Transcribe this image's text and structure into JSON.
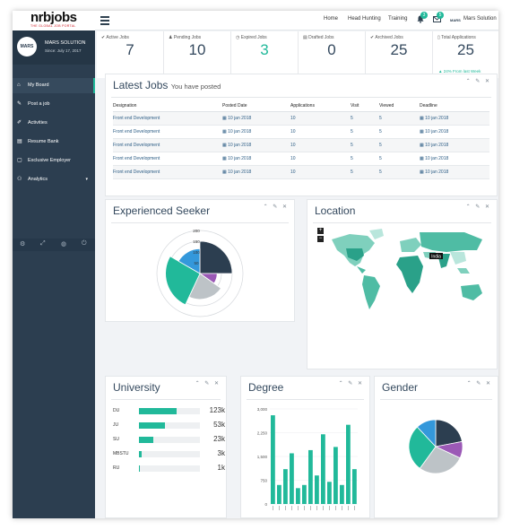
{
  "brand": {
    "logo_text": "nrbjobs",
    "tagline": "THE GLOBAL JOB PORTAL"
  },
  "topnav": {
    "items": [
      "Home",
      "Head Hunting",
      "Training"
    ],
    "bell_count": "3",
    "msg_count": "5",
    "account_badge": "MARS",
    "account_name": "Mars Solution"
  },
  "profile": {
    "avatar": "MARS",
    "name": "MARS SOLUTION",
    "since": "Since: July 17, 2017"
  },
  "sidebar": {
    "items": [
      {
        "icon": "home-icon",
        "label": "My Board"
      },
      {
        "icon": "post-icon",
        "label": "Post a job"
      },
      {
        "icon": "activities-icon",
        "label": "Activities"
      },
      {
        "icon": "resume-icon",
        "label": "Resume Bank"
      },
      {
        "icon": "employer-icon",
        "label": "Exclusive Employer"
      },
      {
        "icon": "analytics-icon",
        "label": "Analytics"
      }
    ]
  },
  "stats": [
    {
      "label": "Active Jobs",
      "value": "7",
      "color": "#34495e"
    },
    {
      "label": "Pending Jobs",
      "value": "10",
      "color": "#34495e"
    },
    {
      "label": "Expired Jobs",
      "value": "3",
      "color": "#21b99a"
    },
    {
      "label": "Drafted Jobs",
      "value": "0",
      "color": "#34495e"
    },
    {
      "label": "Archived Jobs",
      "value": "25",
      "color": "#34495e"
    },
    {
      "label": "Total Applications",
      "value": "25",
      "color": "#34495e",
      "note": "24% From last Week"
    }
  ],
  "latest_jobs": {
    "title": "Latest Jobs",
    "subtitle": "You have posted",
    "columns": [
      "Designation",
      "Posted Date",
      "Applications",
      "Visit",
      "Viewed",
      "Deadline"
    ],
    "rows": [
      [
        "Front end Development",
        "10 jan 2018",
        "10",
        "5",
        "5",
        "10 jan 2018"
      ],
      [
        "Front end Development",
        "10 jan 2018",
        "10",
        "5",
        "5",
        "10 jan 2018"
      ],
      [
        "Front end Development",
        "10 jan 2018",
        "10",
        "5",
        "5",
        "10 jan 2018"
      ],
      [
        "Front end Development",
        "10 jan 2018",
        "10",
        "5",
        "5",
        "10 jan 2018"
      ],
      [
        "Front end Development",
        "10 jan 2018",
        "10",
        "5",
        "5",
        "10 jan 2018"
      ]
    ]
  },
  "experienced_seeker": {
    "title": "Experienced Seeker",
    "ticks": [
      "200",
      "150",
      "100",
      "50"
    ]
  },
  "location": {
    "title": "Location",
    "zoom_in": "+",
    "zoom_out": "−",
    "tooltip": "India"
  },
  "university": {
    "title": "University",
    "rows": [
      {
        "name": "DU",
        "value": "123k",
        "fraction": 0.62
      },
      {
        "name": "JU",
        "value": "53k",
        "fraction": 0.42
      },
      {
        "name": "SU",
        "value": "23k",
        "fraction": 0.24
      },
      {
        "name": "MBSTU",
        "value": "3k",
        "fraction": 0.04
      },
      {
        "name": "RU",
        "value": "1k",
        "fraction": 0.02
      }
    ]
  },
  "degree": {
    "title": "Degree"
  },
  "gender": {
    "title": "Gender"
  },
  "colors": {
    "accent": "#21b99a",
    "sidebar": "#2c3e50",
    "title": "#34495e"
  },
  "chart_data": [
    {
      "type": "bar",
      "title": "Degree",
      "yticks": [
        "3,000",
        "2,250",
        "1,500",
        "750",
        "0"
      ],
      "ylim": [
        0,
        3000
      ],
      "values": [
        2800,
        600,
        1100,
        1600,
        500,
        600,
        1700,
        900,
        2200,
        700,
        1800,
        600,
        2500,
        1100
      ]
    },
    {
      "type": "pie",
      "title": "Gender",
      "values": [
        22,
        10,
        28,
        28,
        12
      ],
      "colors": [
        "#2c3e50",
        "#9b59b6",
        "#bdc3c7",
        "#21b99a",
        "#3498db"
      ]
    },
    {
      "type": "pie",
      "title": "Experienced Seeker",
      "ylim": [
        0,
        200
      ],
      "values": [
        {
          "value": 150,
          "angle": 90,
          "color": "#2c3e50"
        },
        {
          "value": 80,
          "angle": 35,
          "color": "#9b59b6"
        },
        {
          "value": 120,
          "angle": 80,
          "color": "#bdc3c7"
        },
        {
          "value": 160,
          "angle": 95,
          "color": "#21b99a"
        },
        {
          "value": 115,
          "angle": 60,
          "color": "#3498db"
        }
      ]
    }
  ]
}
